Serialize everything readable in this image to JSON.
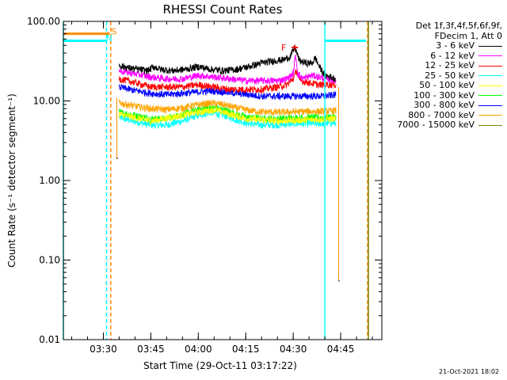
{
  "chart_data": {
    "type": "line",
    "title": "RHESSI Count Rates",
    "xlabel": "Start Time (29-Oct-11 03:17:22)",
    "ylabel": "Count Rate (s⁻¹ detector segment⁻¹)",
    "yscale": "log",
    "ylim": [
      0.01,
      100
    ],
    "xlim": [
      "03:17:22",
      "04:58:00"
    ],
    "ytick_labels": [
      "0.01",
      "0.10",
      "1.00",
      "10.00",
      "100.00"
    ],
    "xtick_labels": [
      "03:30",
      "03:45",
      "04:00",
      "04:15",
      "04:30",
      "04:45"
    ],
    "legend_header": [
      "Det 1f,3f,4f,5f,6f,9f,",
      "FDecim 1, Att 0"
    ],
    "legend_position": "top-right outside",
    "series": [
      {
        "name": "3 - 6 keV",
        "color": "#000000",
        "points": [
          [
            "03:35:00",
            28
          ],
          [
            "03:38:00",
            26
          ],
          [
            "03:41:00",
            25
          ],
          [
            "03:44:00",
            24
          ],
          [
            "03:46:00",
            27
          ],
          [
            "03:48:00",
            25
          ],
          [
            "03:52:00",
            24
          ],
          [
            "03:56:00",
            25
          ],
          [
            "04:00:00",
            27
          ],
          [
            "04:04:00",
            25
          ],
          [
            "04:08:00",
            24
          ],
          [
            "04:12:00",
            25
          ],
          [
            "04:16:00",
            27
          ],
          [
            "04:20:00",
            30
          ],
          [
            "04:24:00",
            32
          ],
          [
            "04:27:00",
            33
          ],
          [
            "04:29:00",
            36
          ],
          [
            "04:30:30",
            47
          ],
          [
            "04:32:00",
            32
          ],
          [
            "04:34:00",
            30
          ],
          [
            "04:36:00",
            30
          ],
          [
            "04:37:00",
            35
          ],
          [
            "04:38:00",
            28
          ],
          [
            "04:40:00",
            21
          ],
          [
            "04:42:00",
            20
          ],
          [
            "04:43:30",
            19
          ]
        ]
      },
      {
        "name": "6 - 12 keV",
        "color": "#ff00ff",
        "points": [
          [
            "03:35:00",
            24
          ],
          [
            "03:40:00",
            22
          ],
          [
            "03:45:00",
            20
          ],
          [
            "03:50:00",
            19
          ],
          [
            "03:55:00",
            19
          ],
          [
            "04:00:00",
            21
          ],
          [
            "04:05:00",
            20
          ],
          [
            "04:10:00",
            19
          ],
          [
            "04:15:00",
            18
          ],
          [
            "04:20:00",
            18
          ],
          [
            "04:25:00",
            18
          ],
          [
            "04:28:00",
            19
          ],
          [
            "04:30:00",
            22
          ],
          [
            "04:30:45",
            38
          ],
          [
            "04:31:30",
            22
          ],
          [
            "04:33:00",
            19
          ],
          [
            "04:36:00",
            21
          ],
          [
            "04:38:00",
            20
          ],
          [
            "04:41:00",
            19
          ],
          [
            "04:43:30",
            18
          ]
        ]
      },
      {
        "name": "12 - 25 keV",
        "color": "#ff0000",
        "points": [
          [
            "03:35:00",
            19
          ],
          [
            "03:40:00",
            17
          ],
          [
            "03:45:00",
            15
          ],
          [
            "03:50:00",
            15
          ],
          [
            "03:55:00",
            15
          ],
          [
            "04:00:00",
            16
          ],
          [
            "04:05:00",
            15
          ],
          [
            "04:10:00",
            14
          ],
          [
            "04:15:00",
            14
          ],
          [
            "04:20:00",
            14
          ],
          [
            "04:25:00",
            15
          ],
          [
            "04:28:00",
            16
          ],
          [
            "04:30:00",
            19
          ],
          [
            "04:31:00",
            24
          ],
          [
            "04:32:00",
            18
          ],
          [
            "04:35:00",
            17
          ],
          [
            "04:38:00",
            16
          ],
          [
            "04:41:00",
            16
          ],
          [
            "04:43:30",
            16
          ]
        ]
      },
      {
        "name": "25 - 50 keV",
        "color": "#00ffff",
        "points": [
          [
            "03:35:00",
            6.2
          ],
          [
            "03:40:00",
            5.5
          ],
          [
            "03:45:00",
            5.0
          ],
          [
            "03:50:00",
            5.0
          ],
          [
            "03:55:00",
            5.6
          ],
          [
            "04:00:00",
            6.6
          ],
          [
            "04:04:00",
            7.2
          ],
          [
            "04:08:00",
            6.6
          ],
          [
            "04:12:00",
            5.8
          ],
          [
            "04:16:00",
            5.2
          ],
          [
            "04:20:00",
            5.0
          ],
          [
            "04:25:00",
            5.0
          ],
          [
            "04:30:00",
            5.2
          ],
          [
            "04:35:00",
            5.2
          ],
          [
            "04:40:00",
            5.2
          ],
          [
            "04:43:30",
            5.3
          ]
        ]
      },
      {
        "name": "50 - 100 keV",
        "color": "#ffff00",
        "points": [
          [
            "03:35:00",
            6.8
          ],
          [
            "03:45:00",
            5.6
          ],
          [
            "04:00:00",
            7.2
          ],
          [
            "04:05:00",
            7.8
          ],
          [
            "04:15:00",
            6.0
          ],
          [
            "04:25:00",
            5.6
          ],
          [
            "04:35:00",
            5.8
          ],
          [
            "04:43:30",
            6.0
          ]
        ]
      },
      {
        "name": "100 - 300 keV",
        "color": "#00ff00",
        "points": [
          [
            "03:35:00",
            7.2
          ],
          [
            "03:40:00",
            6.6
          ],
          [
            "03:45:00",
            6.0
          ],
          [
            "03:50:00",
            6.0
          ],
          [
            "03:55:00",
            6.8
          ],
          [
            "04:00:00",
            7.8
          ],
          [
            "04:04:00",
            8.3
          ],
          [
            "04:08:00",
            7.8
          ],
          [
            "04:12:00",
            6.8
          ],
          [
            "04:16:00",
            6.2
          ],
          [
            "04:20:00",
            6.0
          ],
          [
            "04:25:00",
            6.0
          ],
          [
            "04:30:00",
            6.1
          ],
          [
            "04:35:00",
            6.2
          ],
          [
            "04:40:00",
            6.2
          ],
          [
            "04:43:30",
            6.3
          ]
        ]
      },
      {
        "name": "300 - 800 keV",
        "color": "#0000ff",
        "points": [
          [
            "03:35:00",
            15
          ],
          [
            "03:40:00",
            13.5
          ],
          [
            "03:45:00",
            12.5
          ],
          [
            "03:50:00",
            12
          ],
          [
            "03:55:00",
            12.5
          ],
          [
            "04:00:00",
            13
          ],
          [
            "04:04:00",
            13.5
          ],
          [
            "04:08:00",
            13
          ],
          [
            "04:12:00",
            12.5
          ],
          [
            "04:16:00",
            12
          ],
          [
            "04:20:00",
            11.5
          ],
          [
            "04:25:00",
            11.5
          ],
          [
            "04:30:00",
            11.5
          ],
          [
            "04:35:00",
            11.5
          ],
          [
            "04:40:00",
            11.5
          ],
          [
            "04:43:30",
            12
          ]
        ]
      },
      {
        "name": "800 - 7000 keV",
        "color": "#ffa500",
        "points": [
          [
            "03:35:00",
            9.5
          ],
          [
            "03:40:00",
            8.6
          ],
          [
            "03:45:00",
            8.0
          ],
          [
            "03:50:00",
            7.8
          ],
          [
            "03:55:00",
            8.2
          ],
          [
            "04:00:00",
            9.0
          ],
          [
            "04:04:00",
            9.4
          ],
          [
            "04:08:00",
            9.0
          ],
          [
            "04:12:00",
            8.2
          ],
          [
            "04:16:00",
            7.6
          ],
          [
            "04:20:00",
            7.3
          ],
          [
            "04:25:00",
            7.2
          ],
          [
            "04:30:00",
            7.3
          ],
          [
            "04:35:00",
            7.4
          ],
          [
            "04:40:00",
            7.4
          ],
          [
            "04:43:30",
            7.6
          ]
        ]
      },
      {
        "name": "7000 - 15000 keV",
        "color": "#808000",
        "points": []
      }
    ],
    "attenuator_segments": [
      {
        "color": "#ff8c00",
        "points": [
          [
            "03:17:22",
            70
          ],
          [
            "03:32:00",
            70
          ]
        ]
      },
      {
        "color": "#00ffff",
        "points": [
          [
            "03:17:22",
            57
          ],
          [
            "03:31:00",
            57
          ]
        ]
      },
      {
        "color": "#00ffff",
        "points": [
          [
            "04:40:00",
            57
          ],
          [
            "04:53:00",
            57
          ]
        ]
      }
    ],
    "vertical_lines": [
      {
        "x": "03:17:22",
        "color": "#00ffff",
        "style": "solid"
      },
      {
        "x": "03:31:00",
        "color": "#00ffff",
        "style": "dashed"
      },
      {
        "x": "03:32:20",
        "color": "#ff8c00",
        "style": "dashed"
      },
      {
        "x": "04:40:00",
        "color": "#00ffff",
        "style": "solid"
      },
      {
        "x": "04:53:30",
        "color": "#ff8c00",
        "style": "dashed"
      },
      {
        "x": "04:53:45",
        "color": "#808000",
        "style": "solid"
      }
    ],
    "drop_lines": [
      {
        "x": "03:34:15",
        "from": 11,
        "to": 1.9,
        "color": "#ff8c00"
      },
      {
        "x": "04:44:20",
        "from": 15,
        "to": 0.055,
        "color": "#ff8c00"
      }
    ],
    "annotations": [
      {
        "text": "S",
        "x": "03:33:20",
        "y": 75,
        "color": "#ff8c00"
      },
      {
        "text": "N",
        "x": "03:31:50",
        "y": 62,
        "color": "#00ffff"
      },
      {
        "text": "F",
        "x": "04:27:00",
        "y": 47,
        "color": "#ff0000"
      }
    ],
    "flare_marker": {
      "x1": "04:29:30",
      "x2": "04:31:30",
      "y": 47,
      "color": "#ff0000"
    }
  },
  "footer": "21-Oct-2021 18:02"
}
